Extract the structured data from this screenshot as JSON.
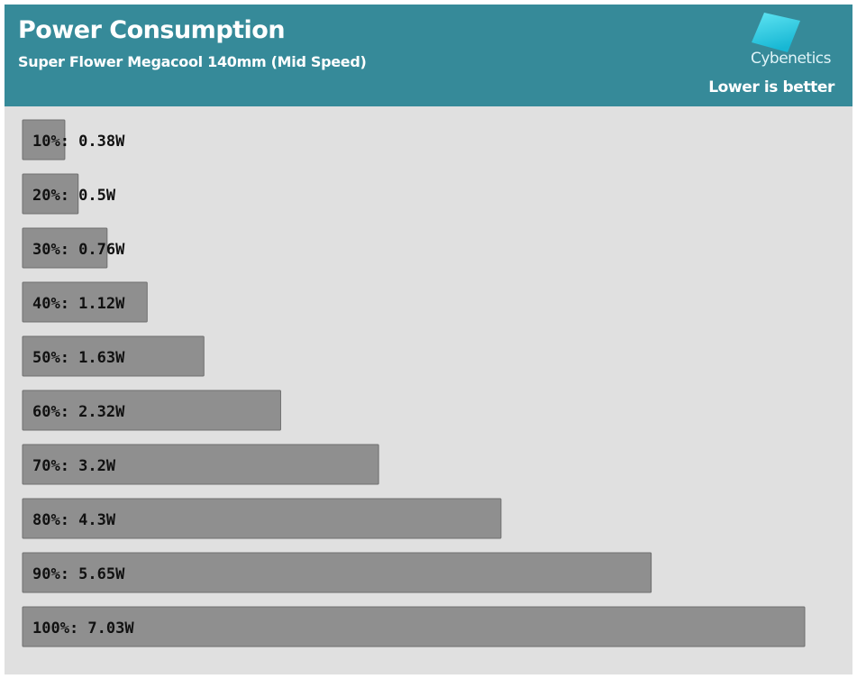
{
  "header": {
    "title": "Power Consumption",
    "subtitle": "Super Flower Megacool 140mm (Mid Speed)",
    "logo_text": "Cybenetics",
    "note": "Lower is better"
  },
  "colors": {
    "header_bg": "#368a99",
    "plot_bg": "#e0e0e0",
    "bar_fill": "#8f8f8f",
    "bar_stroke": "#6f6f6f",
    "label_text": "#111111",
    "logo_top": "#5fe4f2",
    "logo_bottom": "#17b7d4"
  },
  "chart_data": {
    "type": "bar",
    "orientation": "horizontal",
    "title": "Power Consumption",
    "subtitle": "Super Flower Megacool 140mm (Mid Speed)",
    "categories": [
      "10%",
      "20%",
      "30%",
      "40%",
      "50%",
      "60%",
      "70%",
      "80%",
      "90%",
      "100%"
    ],
    "values": [
      0.38,
      0.5,
      0.76,
      1.12,
      1.63,
      2.32,
      3.2,
      4.3,
      5.65,
      7.03
    ],
    "labels": [
      "10%: 0.38W",
      "20%: 0.5W",
      "30%: 0.76W",
      "40%: 1.12W",
      "50%: 1.63W",
      "60%: 2.32W",
      "70%: 3.2W",
      "80%: 4.3W",
      "90%: 5.65W",
      "100%: 7.03W"
    ],
    "grid": false,
    "legend": "none"
  }
}
